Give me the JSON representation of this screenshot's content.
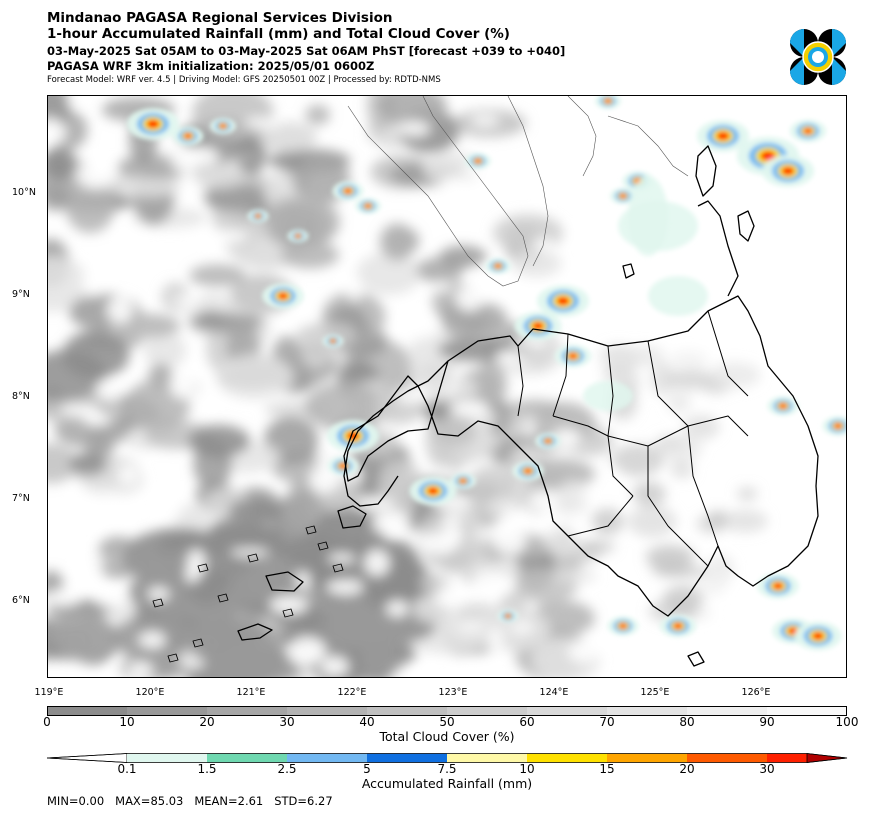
{
  "header": {
    "line1": "Mindanao PAGASA Regional Services Division",
    "line2": "1-hour Accumulated Rainfall (mm) and Total Cloud Cover (%)",
    "line3": "03-May-2025 Sat 05AM to 03-May-2025 Sat 06AM PhST [forecast +039 to +040]",
    "line4": "PAGASA WRF 3km initialization: 2025/05/01 0600Z",
    "line5": "Forecast Model: WRF ver. 4.5 | Driving Model: GFS 20250501 00Z | Processed by: RDTD-NMS"
  },
  "logo": {
    "icon": "pagasa-logo-icon",
    "colors": [
      "#000000",
      "#1aa7e6",
      "#f5d000"
    ]
  },
  "map": {
    "lat_labels": [
      "10°N",
      "9°N",
      "8°N",
      "7°N",
      "6°N"
    ],
    "lon_labels": [
      "119°E",
      "120°E",
      "121°E",
      "122°E",
      "123°E",
      "124°E",
      "125°E",
      "126°E"
    ]
  },
  "cloud_bar": {
    "ticks": [
      "0",
      "10",
      "20",
      "30",
      "40",
      "50",
      "60",
      "70",
      "80",
      "90",
      "100"
    ],
    "label": "Total Cloud Cover (%)",
    "colors": [
      "#8c8c8c",
      "#999999",
      "#a6a6a6",
      "#b3b3b3",
      "#c0c0c0",
      "#cdcdcd",
      "#d9d9d9",
      "#e4e4e4",
      "#efefef",
      "#f8f8f8"
    ]
  },
  "rain_bar": {
    "ticks": [
      "0.1",
      "1.5",
      "2.5",
      "5",
      "7.5",
      "10",
      "15",
      "20",
      "30"
    ],
    "label": "Accumulated Rainfall (mm)",
    "colors": [
      "#e0f7ef",
      "#6fd8b0",
      "#72b8f2",
      "#0f6fe0",
      "#fff9a8",
      "#ffe100",
      "#ffa500",
      "#ff5a00",
      "#ff2000",
      "#b00000"
    ]
  },
  "stats": {
    "min": "MIN=0.00",
    "max": "MAX=85.03",
    "mean": "MEAN=2.61",
    "std": "STD=6.27"
  }
}
